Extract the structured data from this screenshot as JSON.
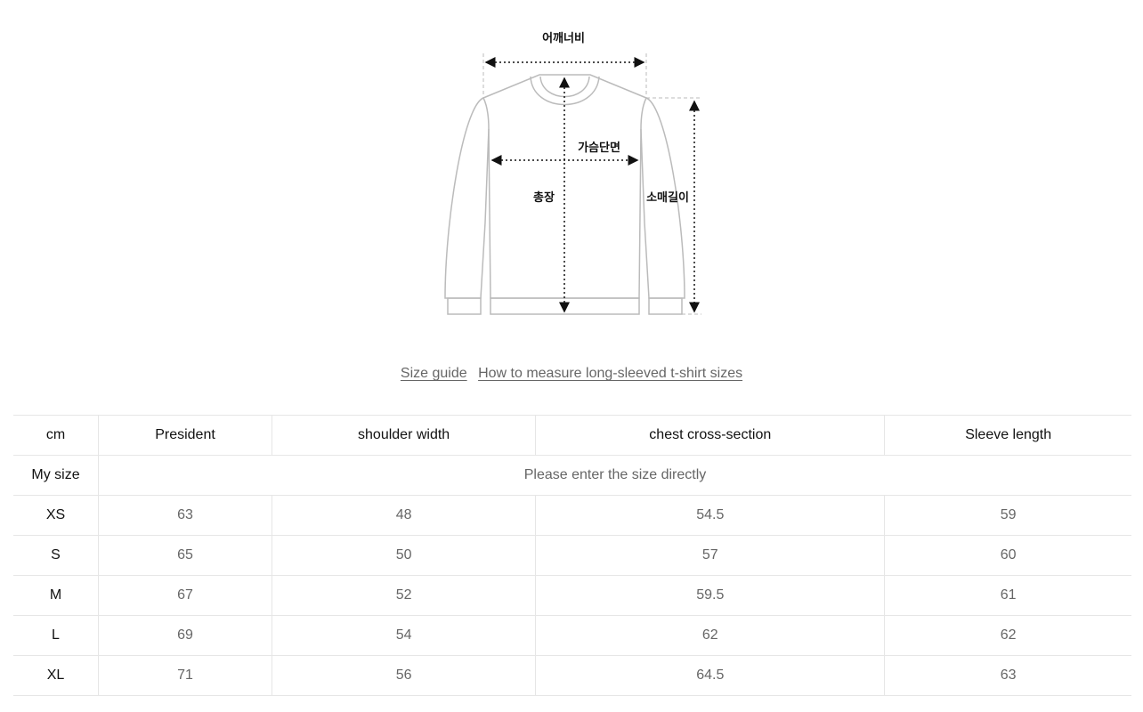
{
  "diagram": {
    "shoulder_label": "어깨너비",
    "chest_label": "가슴단면",
    "length_label": "총장",
    "sleeve_label": "소매길이"
  },
  "links": {
    "size_guide": "Size guide",
    "how_to_measure": "How to measure long-sleeved t-shirt sizes"
  },
  "table": {
    "headers": [
      "cm",
      "President",
      "shoulder width",
      "chest cross-section",
      "Sleeve length"
    ],
    "my_size": {
      "label": "My size",
      "placeholder": "Please enter the size directly"
    },
    "rows": [
      {
        "size": "XS",
        "values": [
          "63",
          "48",
          "54.5",
          "59"
        ]
      },
      {
        "size": "S",
        "values": [
          "65",
          "50",
          "57",
          "60"
        ]
      },
      {
        "size": "M",
        "values": [
          "67",
          "52",
          "59.5",
          "61"
        ]
      },
      {
        "size": "L",
        "values": [
          "69",
          "54",
          "62",
          "62"
        ]
      },
      {
        "size": "XL",
        "values": [
          "71",
          "56",
          "64.5",
          "63"
        ]
      }
    ]
  }
}
